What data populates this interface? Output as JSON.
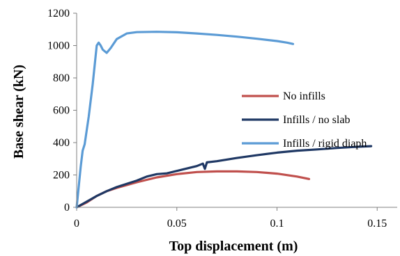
{
  "chart_data": {
    "type": "line",
    "title": "",
    "xlabel": "Top displacement (m)",
    "ylabel": "Base shear (kN)",
    "xlim": [
      0,
      0.16
    ],
    "ylim": [
      0,
      1200
    ],
    "xticks": [
      0,
      0.05,
      0.1,
      0.15
    ],
    "xtick_labels": [
      "0",
      "0.05",
      "0.1",
      "0.15"
    ],
    "yticks": [
      0,
      200,
      400,
      600,
      800,
      1000,
      1200
    ],
    "ytick_labels": [
      "0",
      "200",
      "400",
      "600",
      "800",
      "1000",
      "1200"
    ],
    "grid": false,
    "legend_position": "center-right",
    "series": [
      {
        "name": "No infills",
        "color": "#c0504d",
        "points": [
          [
            0,
            0
          ],
          [
            0.005,
            30
          ],
          [
            0.01,
            70
          ],
          [
            0.015,
            100
          ],
          [
            0.02,
            120
          ],
          [
            0.03,
            155
          ],
          [
            0.04,
            185
          ],
          [
            0.05,
            205
          ],
          [
            0.06,
            218
          ],
          [
            0.07,
            222
          ],
          [
            0.08,
            222
          ],
          [
            0.09,
            218
          ],
          [
            0.1,
            208
          ],
          [
            0.11,
            190
          ],
          [
            0.116,
            175
          ]
        ]
      },
      {
        "name": "Infills / no slab",
        "color": "#1f3864",
        "points": [
          [
            0,
            0
          ],
          [
            0.005,
            35
          ],
          [
            0.01,
            70
          ],
          [
            0.015,
            100
          ],
          [
            0.02,
            125
          ],
          [
            0.03,
            165
          ],
          [
            0.035,
            190
          ],
          [
            0.04,
            205
          ],
          [
            0.045,
            210
          ],
          [
            0.05,
            225
          ],
          [
            0.055,
            240
          ],
          [
            0.06,
            255
          ],
          [
            0.063,
            270
          ],
          [
            0.064,
            238
          ],
          [
            0.065,
            278
          ],
          [
            0.07,
            285
          ],
          [
            0.08,
            305
          ],
          [
            0.09,
            322
          ],
          [
            0.1,
            338
          ],
          [
            0.11,
            350
          ],
          [
            0.12,
            358
          ],
          [
            0.13,
            367
          ],
          [
            0.14,
            374
          ],
          [
            0.147,
            378
          ]
        ]
      },
      {
        "name": "Infills / rigid diaph",
        "color": "#5b9bd5",
        "points": [
          [
            0,
            0
          ],
          [
            0.002,
            250
          ],
          [
            0.003,
            350
          ],
          [
            0.004,
            390
          ],
          [
            0.006,
            560
          ],
          [
            0.008,
            760
          ],
          [
            0.009,
            880
          ],
          [
            0.01,
            1000
          ],
          [
            0.011,
            1018
          ],
          [
            0.012,
            1000
          ],
          [
            0.013,
            975
          ],
          [
            0.015,
            955
          ],
          [
            0.017,
            985
          ],
          [
            0.02,
            1040
          ],
          [
            0.025,
            1075
          ],
          [
            0.03,
            1083
          ],
          [
            0.04,
            1085
          ],
          [
            0.05,
            1082
          ],
          [
            0.06,
            1075
          ],
          [
            0.07,
            1066
          ],
          [
            0.08,
            1055
          ],
          [
            0.09,
            1042
          ],
          [
            0.1,
            1028
          ],
          [
            0.105,
            1018
          ],
          [
            0.108,
            1010
          ]
        ]
      }
    ]
  }
}
